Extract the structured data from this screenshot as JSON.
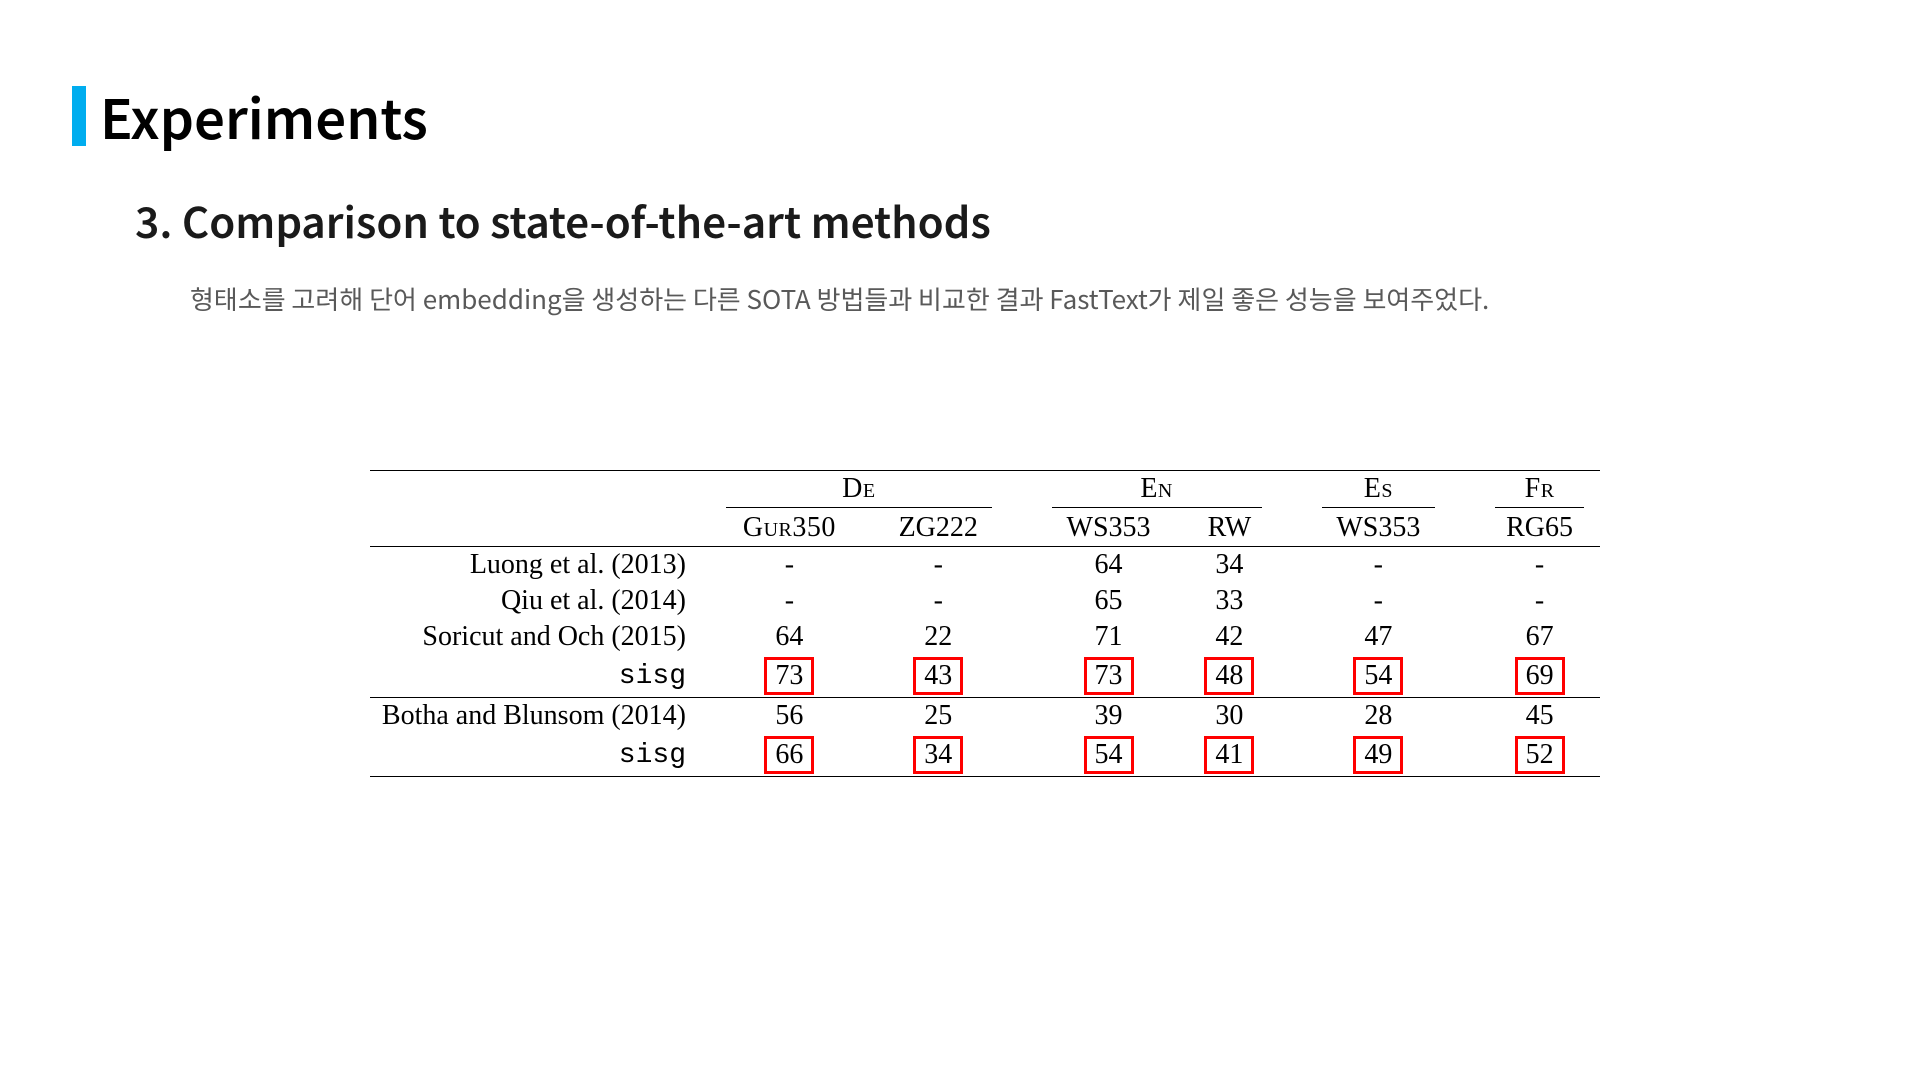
{
  "accent_color": "#00adef",
  "highlight_border_color": "#ff0000",
  "background_color": "#ffffff",
  "text_color": "#000000",
  "desc_color": "#595959",
  "title": "Experiments",
  "subtitle": "3. Comparison to state-of-the-art methods",
  "description": "형태소를 고려해 단어 embedding을 생성하는 다른 SOTA 방법들과 비교한 결과 FastText가 제일 좋은 성능을 보여주었다.",
  "table": {
    "groups": [
      {
        "label": "De",
        "subs": [
          "Gur350",
          "ZG222"
        ]
      },
      {
        "label": "En",
        "subs": [
          "WS353",
          "RW"
        ]
      },
      {
        "label": "Es",
        "subs": [
          "WS353"
        ]
      },
      {
        "label": "Fr",
        "subs": [
          "RG65"
        ]
      }
    ],
    "sections": [
      {
        "rows": [
          {
            "label": "Luong et al. (2013)",
            "mono": false,
            "cells": [
              {
                "v": "-"
              },
              {
                "v": "-"
              },
              {
                "v": "64"
              },
              {
                "v": "34"
              },
              {
                "v": "-"
              },
              {
                "v": "-"
              }
            ]
          },
          {
            "label": "Qiu et al. (2014)",
            "mono": false,
            "cells": [
              {
                "v": "-"
              },
              {
                "v": "-"
              },
              {
                "v": "65"
              },
              {
                "v": "33"
              },
              {
                "v": "-"
              },
              {
                "v": "-"
              }
            ]
          },
          {
            "label": "Soricut and Och (2015)",
            "mono": false,
            "cells": [
              {
                "v": "64"
              },
              {
                "v": "22"
              },
              {
                "v": "71"
              },
              {
                "v": "42"
              },
              {
                "v": "47"
              },
              {
                "v": "67"
              }
            ]
          },
          {
            "label": "sisg",
            "mono": true,
            "cells": [
              {
                "v": "73",
                "hl": true
              },
              {
                "v": "43",
                "hl": true
              },
              {
                "v": "73",
                "hl": true
              },
              {
                "v": "48",
                "hl": true
              },
              {
                "v": "54",
                "hl": true
              },
              {
                "v": "69",
                "hl": true
              }
            ]
          }
        ]
      },
      {
        "rows": [
          {
            "label": "Botha and Blunsom (2014)",
            "mono": false,
            "cells": [
              {
                "v": "56"
              },
              {
                "v": "25"
              },
              {
                "v": "39"
              },
              {
                "v": "30"
              },
              {
                "v": "28"
              },
              {
                "v": "45"
              }
            ]
          },
          {
            "label": "sisg",
            "mono": true,
            "cells": [
              {
                "v": "66",
                "hl": true
              },
              {
                "v": "34",
                "hl": true
              },
              {
                "v": "54",
                "hl": true
              },
              {
                "v": "41",
                "hl": true
              },
              {
                "v": "49",
                "hl": true
              },
              {
                "v": "52",
                "hl": true
              }
            ]
          }
        ]
      }
    ]
  }
}
